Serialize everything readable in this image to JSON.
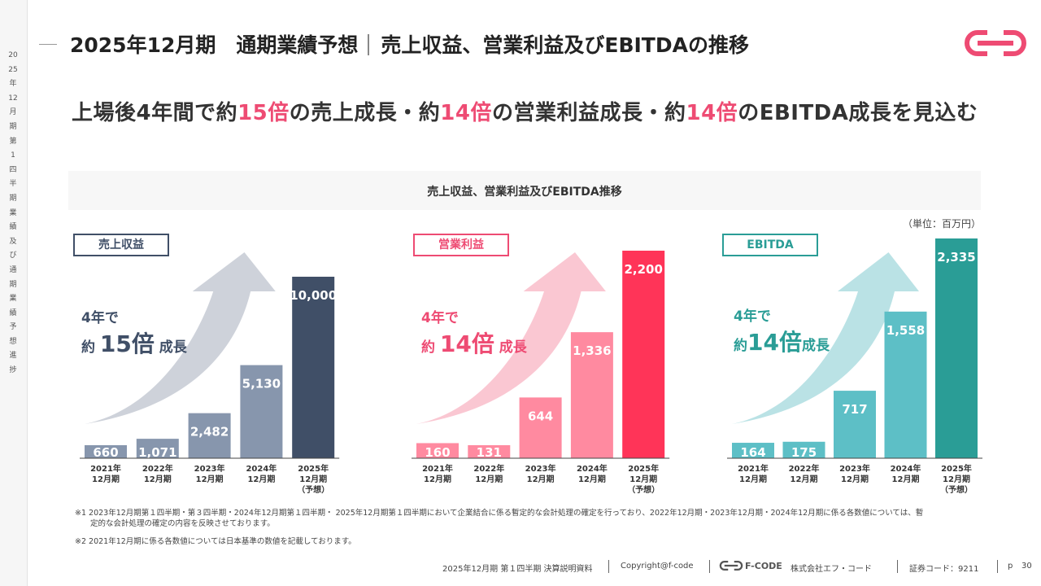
{
  "sidebar": {
    "vertical_text": "2025年12月期 第1四半期業績 及び 通期業績予想進捗"
  },
  "header": {
    "title_left": "2025年12月期　通期業績予想",
    "title_right": "売上収益、営業利益及びEBITDAの推移"
  },
  "headline": {
    "p1": "上場後4年間で約",
    "v1": "15倍",
    "p2": "の売上成長・約",
    "v2": "14倍",
    "p3": "の営業利益成長・約",
    "v3": "14倍",
    "p4": "のEBITDA成長を見込む"
  },
  "panel_title": "売上収益、営業利益及びEBITDA推移",
  "unit": "（単位：百万円）",
  "colors": {
    "accent": "#ee4b73",
    "revenue": "#8796ad",
    "revenue_dark": "#404f67",
    "op": "#ff8aa0",
    "op_dark": "#ff3458",
    "ebitda": "#5dbfc6",
    "ebitda_dark": "#2a9d96"
  },
  "chart_data": [
    {
      "type": "bar",
      "title": "売上収益",
      "categories": [
        "2021年\n12月期",
        "2022年\n12月期",
        "2023年\n12月期",
        "2024年\n12月期",
        "2025年\n12月期\n（予想）"
      ],
      "values": [
        660,
        1071,
        2482,
        5130,
        10000
      ],
      "value_labels": [
        "660",
        "1,071",
        "2,482",
        "5,130",
        "10,000"
      ],
      "growth": {
        "l1": "4年で",
        "pre": "約 ",
        "big": "15倍",
        "post": " 成長"
      },
      "color": "#8796ad",
      "highlight": "#404f67",
      "label_color": "#404f67"
    },
    {
      "type": "bar",
      "title": "営業利益",
      "categories": [
        "2021年\n12月期",
        "2022年\n12月期",
        "2023年\n12月期",
        "2024年\n12月期",
        "2025年\n12月期\n（予想）"
      ],
      "values": [
        160,
        131,
        644,
        1336,
        2200
      ],
      "value_labels": [
        "160",
        "131",
        "644",
        "1,336",
        "2,200"
      ],
      "growth": {
        "l1": "4年で",
        "pre": "約 ",
        "big": "14倍",
        "post": " 成長"
      },
      "color": "#ff8aa0",
      "highlight": "#ff3458",
      "label_color": "#ee4b73"
    },
    {
      "type": "bar",
      "title": "EBITDA",
      "categories": [
        "2021年\n12月期",
        "2022年\n12月期",
        "2023年\n12月期",
        "2024年\n12月期",
        "2025年\n12月期\n（予想）"
      ],
      "values": [
        164,
        175,
        717,
        1558,
        2335
      ],
      "value_labels": [
        "164",
        "175",
        "717",
        "1,558",
        "2,335"
      ],
      "growth": {
        "l1": "4年で",
        "pre": "約",
        "big": "14倍",
        "post": "成長"
      },
      "color": "#5dbfc6",
      "highlight": "#2a9d96",
      "label_color": "#2a9d96"
    }
  ],
  "footnotes": {
    "n1a": "※1  2023年12月期第１四半期・第３四半期・2024年12月期第１四半期・ 2025年12月期第１四半期において企業結合に係る暫定的な会計処理の確定を行っており、2022年12月期・2023年12月期・2024年12月期に係る各数値については、暫",
    "n1b": "　　定的な会計処理の確定の内容を反映させております。",
    "n2": "※2  2021年12月期に係る各数値については日本基準の数値を記載しております。"
  },
  "footer": {
    "doc": "2025年12月期 第１四半期 決算説明資料",
    "copyright": "Copyright@f-code",
    "logo_text": "F-CODE",
    "company": "株式会社エフ・コード",
    "code": "証券コード：9211",
    "page_prefix": "p",
    "page": "30"
  }
}
